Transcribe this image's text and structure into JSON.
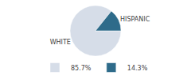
{
  "chart_data": {
    "type": "pie",
    "categories": [
      "WHITE",
      "HISPANIC"
    ],
    "values": [
      85.7,
      14.3
    ],
    "value_labels": [
      "85.7%",
      "14.3%"
    ],
    "colors": [
      "#d6dde8",
      "#2e6b8a"
    ],
    "legend": "bottom"
  }
}
